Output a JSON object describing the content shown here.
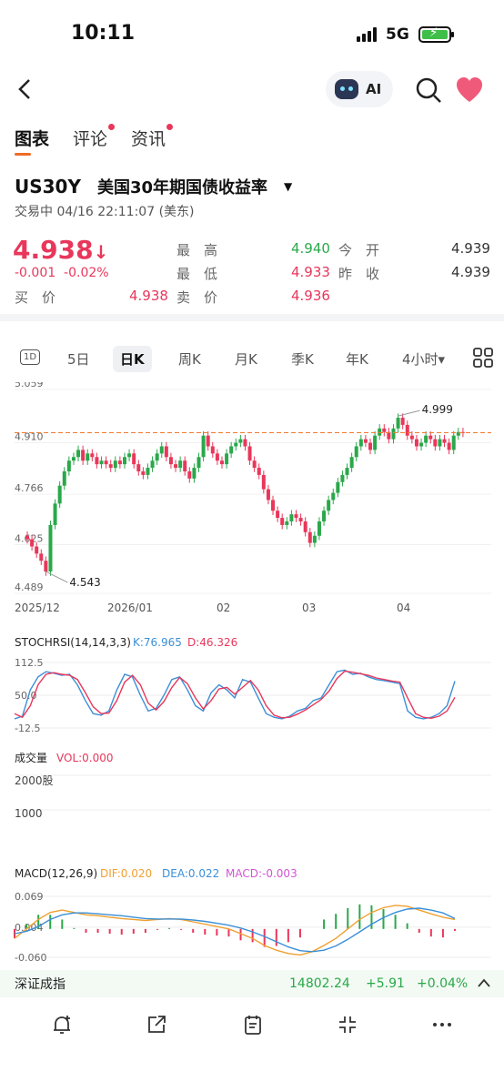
{
  "status_bar": {
    "time": "10:11",
    "network": "5G"
  },
  "header": {
    "ai_label": "AI"
  },
  "tabs": [
    {
      "label": "图表"
    },
    {
      "label": "评论"
    },
    {
      "label": "资讯"
    }
  ],
  "instrument": {
    "symbol": "US30Y",
    "name": "美国30年期国债收益率",
    "status": "交易中 04/16 22:11:07 (美东)",
    "price": "4.938",
    "change": "-0.001",
    "change_pct": "-0.02%"
  },
  "quote": {
    "high_label": "最　高",
    "high": "4.940",
    "open_label": "今　开",
    "open": "4.939",
    "low_label": "最　低",
    "low": "4.933",
    "prev_close_label": "昨　收",
    "prev_close": "4.939",
    "bid_label": "买　价",
    "bid": "4.938",
    "ask_label": "卖　价",
    "ask": "4.936"
  },
  "periods": [
    "1D",
    "5日",
    "日K",
    "周K",
    "月K",
    "季K",
    "年K",
    "4小时▾"
  ],
  "selected_period": "日K",
  "chart_data": [
    {
      "type": "candlestick",
      "y_ticks": [
        "5.059",
        "4.910",
        "4.766",
        "4.625",
        "4.489"
      ],
      "ylim": [
        4.489,
        5.059
      ],
      "x_ticks": [
        "2025/12",
        "2026/01",
        "02",
        "03",
        "04"
      ],
      "annotations": {
        "high": "4.999",
        "low": "4.543"
      },
      "current_line": 4.938,
      "closes": [
        4.64,
        4.62,
        4.6,
        4.58,
        4.55,
        4.68,
        4.74,
        4.79,
        4.83,
        4.86,
        4.87,
        4.89,
        4.86,
        4.88,
        4.87,
        4.85,
        4.86,
        4.85,
        4.84,
        4.86,
        4.85,
        4.87,
        4.88,
        4.85,
        4.83,
        4.82,
        4.84,
        4.86,
        4.88,
        4.9,
        4.87,
        4.85,
        4.84,
        4.86,
        4.83,
        4.81,
        4.84,
        4.87,
        4.93,
        4.9,
        4.88,
        4.86,
        4.85,
        4.88,
        4.9,
        4.91,
        4.92,
        4.9,
        4.86,
        4.84,
        4.82,
        4.78,
        4.75,
        4.72,
        4.7,
        4.68,
        4.69,
        4.71,
        4.7,
        4.69,
        4.66,
        4.63,
        4.65,
        4.69,
        4.72,
        4.75,
        4.77,
        4.8,
        4.82,
        4.84,
        4.87,
        4.9,
        4.92,
        4.91,
        4.89,
        4.93,
        4.95,
        4.94,
        4.92,
        4.95,
        4.98,
        4.96,
        4.93,
        4.92,
        4.9,
        4.91,
        4.93,
        4.92,
        4.9,
        4.92,
        4.91,
        4.89,
        4.93,
        4.94,
        4.938
      ],
      "colors": {
        "up": "#2aa84a",
        "down": "#e8375b"
      }
    },
    {
      "type": "line",
      "title": "STOCHRSI(14,14,3,3)",
      "k_label": "K:76.965",
      "d_label": "D:46.326",
      "y_ticks": [
        "112.5",
        "50.0",
        "-12.5"
      ],
      "ylim": [
        -12.5,
        112.5
      ],
      "series": [
        {
          "name": "K",
          "color": "#3b8fd8",
          "values": [
            5,
            10,
            60,
            85,
            95,
            92,
            88,
            90,
            70,
            40,
            15,
            12,
            20,
            60,
            90,
            85,
            50,
            20,
            25,
            50,
            80,
            85,
            60,
            30,
            20,
            55,
            70,
            60,
            45,
            80,
            75,
            45,
            15,
            8,
            5,
            10,
            20,
            25,
            40,
            45,
            70,
            95,
            98,
            90,
            92,
            85,
            80,
            78,
            75,
            72,
            20,
            8,
            5,
            8,
            15,
            30,
            77
          ]
        },
        {
          "name": "D",
          "color": "#e8375b",
          "values": [
            15,
            8,
            30,
            70,
            90,
            93,
            90,
            88,
            80,
            55,
            28,
            15,
            16,
            40,
            75,
            88,
            70,
            35,
            22,
            38,
            65,
            84,
            72,
            45,
            24,
            40,
            62,
            65,
            52,
            65,
            78,
            60,
            30,
            12,
            7,
            8,
            14,
            22,
            32,
            42,
            58,
            82,
            96,
            94,
            91,
            88,
            83,
            80,
            77,
            75,
            45,
            15,
            8,
            6,
            10,
            20,
            46
          ]
        }
      ]
    },
    {
      "type": "bar",
      "title": "成交量",
      "vol_label": "VOL:0.000",
      "y_ticks": [
        "2000股",
        "1000"
      ]
    },
    {
      "type": "bar",
      "title": "MACD(12,26,9)",
      "dif_label": "DIF:0.020",
      "dea_label": "DEA:0.022",
      "macd_label": "MACD:-0.003",
      "y_ticks": [
        "0.069",
        "0.004",
        "-0.060"
      ],
      "ylim": [
        -0.06,
        0.069
      ],
      "series": [
        {
          "name": "DIF",
          "color": "#f0a030",
          "values": [
            -0.02,
            0.0,
            0.02,
            0.035,
            0.04,
            0.035,
            0.03,
            0.028,
            0.025,
            0.022,
            0.02,
            0.018,
            0.02,
            0.022,
            0.02,
            0.015,
            0.01,
            0.005,
            0.0,
            -0.01,
            -0.02,
            -0.035,
            -0.045,
            -0.052,
            -0.055,
            -0.048,
            -0.035,
            -0.02,
            0.0,
            0.02,
            0.035,
            0.045,
            0.05,
            0.048,
            0.04,
            0.032,
            0.025,
            0.02
          ]
        },
        {
          "name": "DEA",
          "color": "#3b8fd8",
          "values": [
            -0.01,
            -0.005,
            0.005,
            0.02,
            0.03,
            0.034,
            0.034,
            0.032,
            0.03,
            0.028,
            0.025,
            0.022,
            0.021,
            0.021,
            0.021,
            0.019,
            0.016,
            0.012,
            0.008,
            0.002,
            -0.006,
            -0.016,
            -0.027,
            -0.038,
            -0.046,
            -0.048,
            -0.045,
            -0.036,
            -0.022,
            -0.006,
            0.01,
            0.024,
            0.035,
            0.042,
            0.044,
            0.04,
            0.034,
            0.022
          ]
        }
      ]
    }
  ],
  "ticker_bar": {
    "name": "深证成指",
    "value": "14802.24",
    "change": "+5.91",
    "change_pct": "+0.04%"
  },
  "colors": {
    "accent": "#f06a25",
    "up": "#2aa84a",
    "down": "#e8375b",
    "dif": "#f0a030",
    "dea": "#3b8fd8",
    "macd": "#d455d4"
  }
}
